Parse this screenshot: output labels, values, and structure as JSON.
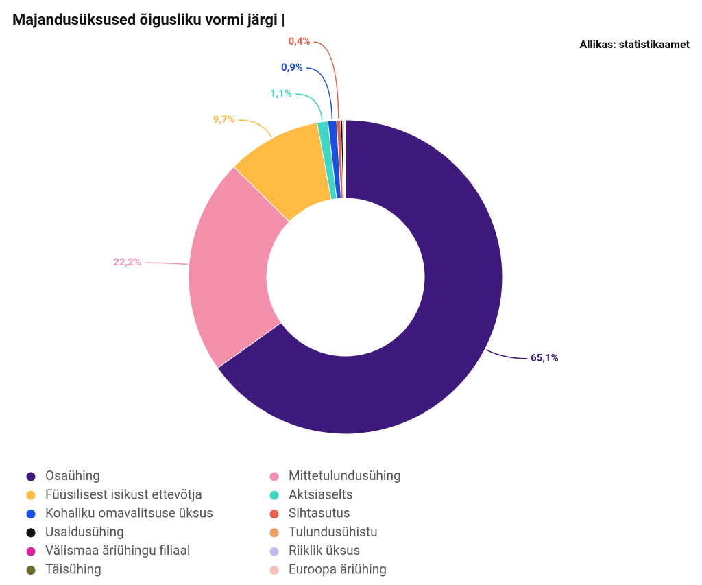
{
  "chart_data": {
    "type": "donut",
    "title": "Majandusüksused õigusliku vormi järgi |",
    "source": "Allikas: statistikaamet",
    "categories": [
      "Osaühing",
      "Mittetulundusühing",
      "Füüsilisest isikust ettevõtja",
      "Aktsiaselts",
      "Kohaliku omavalitsuse üksus",
      "Sihtasutus",
      "Usaldusühing",
      "Tulundusühistu",
      "Välismaa äriühingu filiaal",
      "Riiklik üksus",
      "Täisühing",
      "Euroopa äriühing"
    ],
    "values": [
      65.1,
      22.2,
      9.7,
      1.1,
      0.9,
      0.4,
      0.2,
      0.1,
      0.1,
      0.05,
      0.03,
      0.02
    ],
    "value_labels": [
      "65,1%",
      "22,2%",
      "9,7%",
      "1,1%",
      "0,9%",
      "0,4%",
      null,
      null,
      null,
      null,
      null,
      null
    ],
    "colors": [
      "#3f1a7d",
      "#f48fab",
      "#fdbb44",
      "#3fd6c6",
      "#1a4fe0",
      "#e8604a",
      "#111111",
      "#e9a066",
      "#d6249e",
      "#c9b6ef",
      "#6b6b2e",
      "#f6c1b4"
    ],
    "legend_order": [
      0,
      1,
      2,
      3,
      4,
      5,
      6,
      7,
      8,
      9,
      10,
      11
    ]
  }
}
